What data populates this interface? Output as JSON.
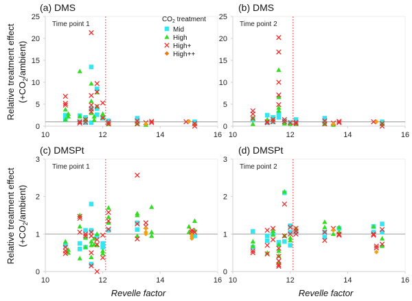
{
  "chart_data": [
    {
      "type": "scatter",
      "panel_label": "(a)",
      "title": "DMS",
      "annotation": "Time point 1",
      "xlabel": "",
      "ylabel": "Relative treatment effect (+CO2/ambient)",
      "xlim": [
        10,
        16
      ],
      "ylim": [
        0,
        25
      ],
      "xticks": [
        "10",
        "12",
        "14",
        "16"
      ],
      "yticks": [
        "0",
        "5",
        "10",
        "15",
        "20",
        "25"
      ],
      "reference_line_y": 1,
      "vertical_line_x": 12.1,
      "grid": false,
      "series": [
        {
          "name": "Mid",
          "x": [
            10.7,
            10.7,
            11.2,
            11.2,
            11.4,
            11.4,
            11.6,
            11.6,
            11.6,
            11.8,
            11.8,
            11.8,
            12.0,
            12.2,
            13.2,
            13.2,
            15.2
          ],
          "y": [
            2.5,
            1.5,
            2.4,
            1.0,
            2.0,
            0.8,
            13.5,
            0.8,
            4.0,
            8.5,
            2.6,
            4.0,
            1.8,
            1.2,
            1.8,
            1.0,
            1.0
          ]
        },
        {
          "name": "High",
          "x": [
            10.7,
            10.7,
            10.8,
            10.8,
            11.2,
            11.2,
            11.4,
            11.6,
            11.6,
            11.6,
            11.7,
            11.7,
            11.8,
            11.8,
            12.0,
            12.0,
            12.2,
            13.2,
            13.5,
            15.2
          ],
          "y": [
            3.8,
            1.5,
            2.8,
            2.2,
            12.5,
            2.2,
            1.5,
            9.7,
            5.7,
            3.0,
            2.2,
            1.4,
            7.7,
            4.5,
            2.8,
            2.0,
            0.5,
            0.6,
            0.3,
            0.5
          ]
        },
        {
          "name": "High+",
          "x": [
            10.7,
            10.7,
            10.7,
            11.2,
            11.2,
            11.4,
            11.4,
            11.6,
            11.6,
            11.6,
            11.6,
            11.6,
            11.8,
            11.8,
            11.8,
            12.0,
            12.0,
            12.2,
            12.2,
            13.2,
            13.2,
            13.5,
            13.7,
            13.7,
            14.9,
            15.2,
            15.2
          ],
          "y": [
            6.8,
            5.2,
            4.8,
            1.0,
            0.7,
            1.5,
            0.9,
            21.3,
            7.0,
            4.8,
            3.9,
            3.3,
            9.7,
            7.8,
            4.5,
            5.3,
            1.9,
            0.9,
            0.5,
            1.2,
            0.5,
            0.8,
            1.1,
            0.8,
            1.0,
            0.6,
            0.0
          ]
        },
        {
          "name": "High++",
          "x": [
            13.5,
            15.0
          ],
          "y": [
            0.5,
            1.1
          ]
        }
      ],
      "legend": {
        "title": "CO2 treatment",
        "entries": [
          "Mid",
          "High",
          "High+",
          "High++"
        ],
        "placement": "top-right"
      }
    },
    {
      "type": "scatter",
      "panel_label": "(b)",
      "title": "DMS",
      "annotation": "Time point 2",
      "xlabel": "",
      "ylabel": "",
      "xlim": [
        10,
        16
      ],
      "ylim": [
        0,
        25
      ],
      "xticks": [
        "10",
        "12",
        "14",
        "16"
      ],
      "yticks": [
        "0",
        "5",
        "10",
        "15",
        "20",
        "25"
      ],
      "reference_line_y": 1,
      "vertical_line_x": 12.1,
      "grid": false,
      "series": [
        {
          "name": "Mid",
          "x": [
            10.7,
            11.2,
            11.2,
            11.4,
            11.4,
            11.6,
            11.6,
            11.8,
            12.0,
            12.2,
            12.2,
            13.2,
            13.2,
            15.2
          ],
          "y": [
            1.5,
            2.5,
            0.8,
            2.0,
            1.0,
            3.0,
            2.0,
            1.2,
            0.8,
            1.5,
            0.6,
            1.8,
            0.8,
            1.0
          ]
        },
        {
          "name": "High",
          "x": [
            10.7,
            10.7,
            11.2,
            11.4,
            11.6,
            11.6,
            11.6,
            11.6,
            11.8,
            12.0,
            12.2,
            13.2,
            13.5,
            15.2
          ],
          "y": [
            1.8,
            0.5,
            1.5,
            1.5,
            12.8,
            6.6,
            4.2,
            3.5,
            0.6,
            0.5,
            0.5,
            0.5,
            0.3,
            0.5
          ]
        },
        {
          "name": "High+",
          "x": [
            10.7,
            10.7,
            10.7,
            11.2,
            11.2,
            11.4,
            11.4,
            11.6,
            11.6,
            11.6,
            11.6,
            11.6,
            11.8,
            11.8,
            12.0,
            12.2,
            12.2,
            13.2,
            13.2,
            13.5,
            13.7,
            13.7,
            14.9,
            15.2,
            15.2
          ],
          "y": [
            3.5,
            2.8,
            1.8,
            1.0,
            0.8,
            1.5,
            1.0,
            20.2,
            16.9,
            10.0,
            7.1,
            4.9,
            1.5,
            1.0,
            0.8,
            0.9,
            0.6,
            1.2,
            0.5,
            0.7,
            1.1,
            0.8,
            1.0,
            0.6,
            0.0
          ]
        },
        {
          "name": "High++",
          "x": [
            13.5,
            15.0
          ],
          "y": [
            0.5,
            1.0
          ]
        }
      ]
    },
    {
      "type": "scatter",
      "panel_label": "(c)",
      "title": "DMSPt",
      "annotation": "Time point 1",
      "xlabel": "Revelle factor",
      "ylabel": "Relative treatment effect (+CO2/ambient)",
      "xlim": [
        10,
        16
      ],
      "ylim": [
        0,
        3
      ],
      "xticks": [
        "10",
        "12",
        "14",
        "16"
      ],
      "yticks": [
        "0",
        "1",
        "2",
        "3"
      ],
      "reference_line_y": 1,
      "vertical_line_x": 12.1,
      "grid": false,
      "series": [
        {
          "name": "Mid",
          "x": [
            10.7,
            11.2,
            11.2,
            11.4,
            11.4,
            11.6,
            11.6,
            11.6,
            11.8,
            12.0,
            12.0,
            12.2,
            13.2,
            13.2,
            15.2
          ],
          "y": [
            0.7,
            0.75,
            0.6,
            1.1,
            0.65,
            1.8,
            1.1,
            0.2,
            0.95,
            0.75,
            0.65,
            1.1,
            1.3,
            1.12,
            0.95
          ]
        },
        {
          "name": "High",
          "x": [
            10.7,
            10.8,
            10.8,
            11.2,
            11.2,
            11.2,
            11.4,
            11.4,
            11.6,
            11.6,
            11.6,
            11.7,
            11.7,
            11.8,
            11.8,
            12.0,
            12.0,
            12.2,
            12.2,
            12.2,
            13.2,
            13.2,
            13.2,
            13.7,
            13.7,
            13.7,
            15.0,
            15.0,
            15.2,
            15.2
          ],
          "y": [
            0.8,
            0.58,
            0.5,
            1.5,
            1.2,
            0.35,
            0.9,
            0.65,
            0.8,
            0.7,
            0.38,
            0.88,
            0.72,
            1.0,
            0.7,
            0.55,
            0.48,
            1.7,
            1.45,
            1.3,
            1.55,
            1.5,
            0.95,
            1.72,
            1.05,
            0.95,
            1.2,
            1.05,
            1.35,
            1.1
          ]
        },
        {
          "name": "High+",
          "x": [
            10.7,
            10.7,
            10.7,
            11.2,
            11.2,
            11.2,
            11.4,
            11.4,
            11.6,
            11.6,
            11.6,
            11.6,
            11.8,
            11.8,
            11.8,
            12.0,
            12.0,
            12.2,
            12.2,
            12.2,
            13.2,
            13.2,
            13.2,
            13.5,
            13.5,
            15.1,
            15.1,
            15.2
          ],
          "y": [
            0.65,
            0.55,
            0.48,
            1.47,
            1.42,
            1.05,
            1.0,
            0.95,
            1.05,
            0.95,
            0.5,
            0.15,
            0.85,
            0.72,
            0.0,
            0.97,
            0.37,
            1.58,
            1.35,
            1.13,
            2.57,
            1.27,
            0.87,
            1.3,
            1.2,
            1.1,
            1.05,
            1.05
          ]
        },
        {
          "name": "High++",
          "x": [
            13.5,
            13.5,
            13.5,
            15.1,
            15.1,
            15.1
          ],
          "y": [
            1.15,
            1.05,
            1.0,
            0.98,
            0.93,
            0.88
          ]
        }
      ]
    },
    {
      "type": "scatter",
      "panel_label": "(d)",
      "title": "DMSPt",
      "annotation": "Time point 2",
      "xlabel": "Revelle factor",
      "ylabel": "",
      "xlim": [
        10,
        16
      ],
      "ylim": [
        0,
        3
      ],
      "xticks": [
        "10",
        "12",
        "14",
        "16"
      ],
      "yticks": [
        "0",
        "1",
        "2",
        "3"
      ],
      "reference_line_y": 1,
      "vertical_line_x": 12.1,
      "grid": false,
      "series": [
        {
          "name": "Mid",
          "x": [
            10.7,
            10.7,
            11.2,
            11.2,
            11.4,
            11.6,
            11.6,
            11.8,
            11.8,
            12.0,
            12.0,
            12.0,
            12.2,
            13.2,
            13.2,
            13.7,
            14.9,
            14.9,
            15.2,
            15.2
          ],
          "y": [
            1.07,
            0.65,
            0.95,
            0.82,
            1.0,
            0.78,
            0.72,
            2.1,
            0.8,
            1.22,
            1.05,
            0.7,
            1.05,
            1.05,
            0.92,
            1.15,
            1.2,
            1.05,
            1.27,
            1.05
          ]
        },
        {
          "name": "High",
          "x": [
            10.7,
            10.7,
            11.2,
            11.4,
            11.4,
            11.6,
            11.6,
            11.6,
            11.6,
            11.8,
            11.8,
            12.0,
            12.0,
            12.2,
            13.2,
            13.2,
            13.5,
            13.7,
            13.7,
            14.9,
            15.2,
            15.2
          ],
          "y": [
            0.8,
            0.68,
            0.5,
            1.08,
            0.98,
            0.72,
            0.55,
            0.42,
            0.25,
            2.13,
            0.95,
            0.9,
            0.83,
            1.15,
            1.32,
            1.18,
            1.0,
            1.18,
            1.05,
            1.2,
            0.88,
            0.68
          ]
        },
        {
          "name": "High+",
          "x": [
            10.7,
            10.7,
            11.2,
            11.2,
            11.2,
            11.4,
            11.4,
            11.6,
            11.6,
            11.6,
            11.6,
            11.6,
            11.8,
            11.8,
            12.0,
            12.0,
            12.2,
            12.2,
            12.2,
            13.2,
            13.2,
            13.5,
            13.7,
            13.7,
            14.9,
            14.9,
            15.0,
            15.0,
            15.2,
            15.2
          ],
          "y": [
            0.55,
            0.5,
            1.1,
            0.7,
            0.47,
            1.15,
            0.85,
            0.62,
            0.4,
            0.28,
            0.18,
            0.14,
            1.8,
            0.95,
            1.18,
            1.0,
            1.15,
            1.08,
            1.0,
            1.05,
            0.83,
            1.15,
            1.0,
            0.97,
            1.0,
            0.97,
            0.68,
            0.63,
            1.12,
            0.73
          ]
        },
        {
          "name": "High++",
          "x": [
            13.5,
            15.0
          ],
          "y": [
            1.1,
            0.52
          ]
        }
      ]
    }
  ],
  "legend": {
    "title_prefix": "CO",
    "title_sub": "2",
    "title_suffix": " treatment",
    "entries": [
      {
        "label": "Mid",
        "marker": "square",
        "color": "#33e6f2"
      },
      {
        "label": "High",
        "marker": "triangle",
        "color": "#33dd22"
      },
      {
        "label": "High+",
        "marker": "x",
        "color": "#ee2a2a"
      },
      {
        "label": "High++",
        "marker": "diamond",
        "color": "#ee7711"
      }
    ]
  },
  "colors": {
    "Mid": "#33e6f2",
    "High": "#33dd22",
    "High+": "#ee2a2a",
    "High++": "#f0a010",
    "reference_line": "#aaaaaa",
    "vertical_line": "#ee4444",
    "axis": "#d0d0d0"
  },
  "ylabel_line1": "Relative treatment effect",
  "ylabel_line2_prefix": "(+CO",
  "ylabel_line2_sub": "2",
  "ylabel_line2_suffix": "/ambient)"
}
